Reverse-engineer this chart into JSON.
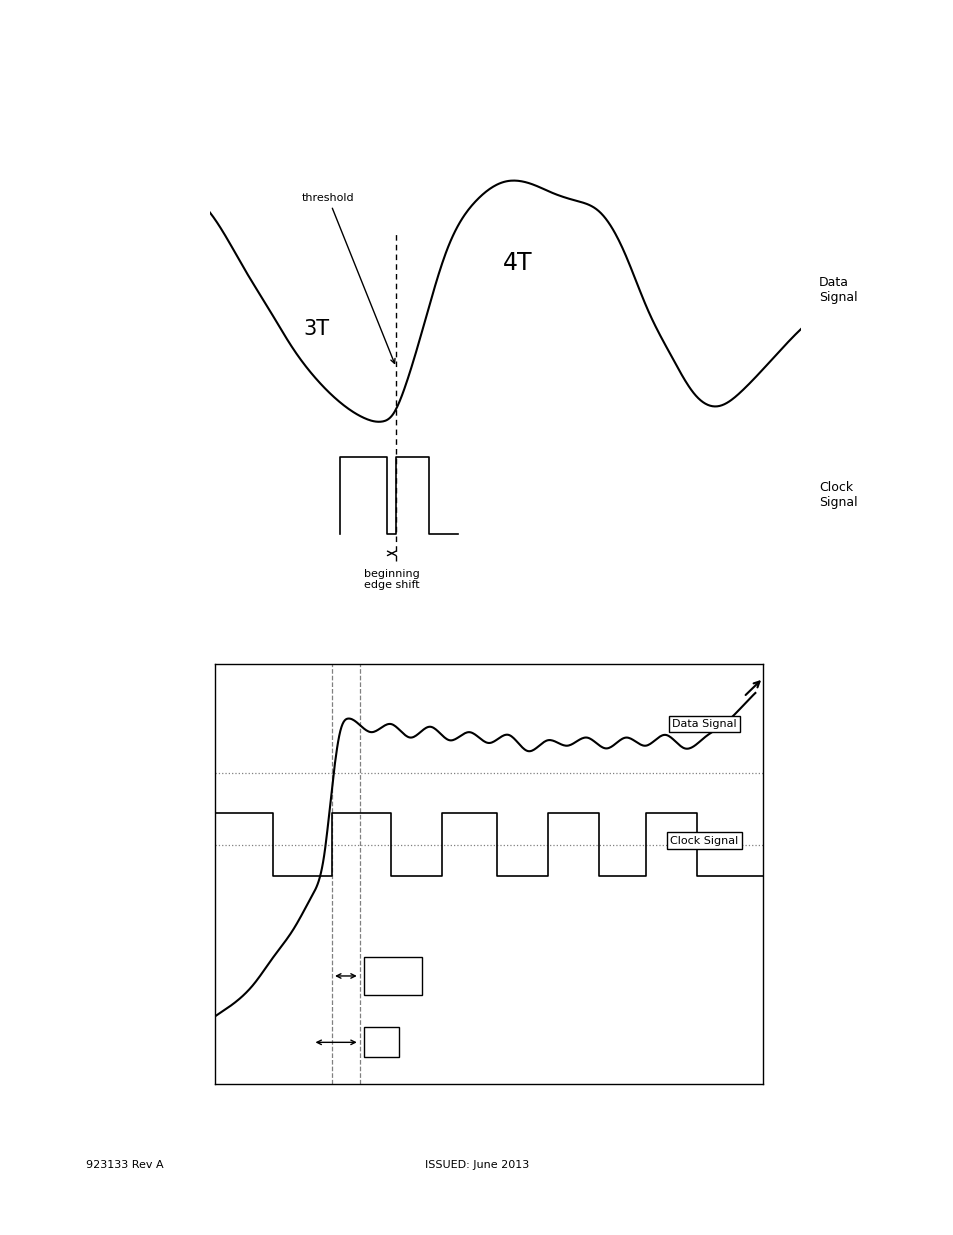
{
  "page_bg": "#ffffff",
  "blue_bar_color": "#0000ee",
  "footer_left": "923133 Rev A",
  "footer_center": "ISSUED: June 2013",
  "footer_fontsize": 8,
  "top_label_3T": "3T",
  "top_label_4T": "4T",
  "top_label_data_signal": "Data\nSignal",
  "top_label_clock_signal": "Clock\nSignal",
  "top_label_threshold": "threshold",
  "top_label_edge_shift": "beginning\nedge shift",
  "bottom_label_data_signal": "Data Signal",
  "bottom_label_clock_signal": "Clock Signal"
}
